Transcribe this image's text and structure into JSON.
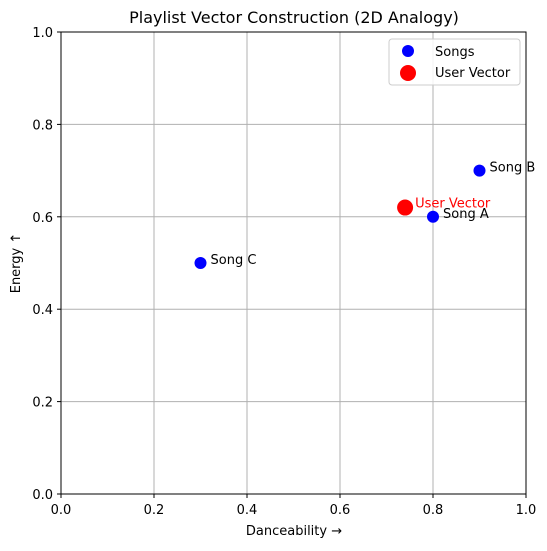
{
  "chart_data": {
    "type": "scatter",
    "title": "Playlist Vector Construction (2D Analogy)",
    "xlabel": "Danceability →",
    "ylabel": "Energy ↑",
    "xlim": [
      0.0,
      1.0
    ],
    "ylim": [
      0.0,
      1.0
    ],
    "xticks": [
      "0.0",
      "0.2",
      "0.4",
      "0.6",
      "0.8",
      "1.0"
    ],
    "yticks": [
      "0.0",
      "0.2",
      "0.4",
      "0.6",
      "0.8",
      "1.0"
    ],
    "grid": true,
    "legend": {
      "placement": "top-right",
      "entries": [
        "Songs",
        "User Vector"
      ]
    },
    "series": [
      {
        "name": "Songs",
        "color": "#0000ff",
        "points": [
          {
            "label": "Song A",
            "x": 0.8,
            "y": 0.6
          },
          {
            "label": "Song B",
            "x": 0.9,
            "y": 0.7
          },
          {
            "label": "Song C",
            "x": 0.3,
            "y": 0.5
          }
        ]
      },
      {
        "name": "User Vector",
        "color": "#ff0000",
        "points": [
          {
            "label": "User Vector",
            "x": 0.74,
            "y": 0.62
          }
        ]
      }
    ]
  }
}
